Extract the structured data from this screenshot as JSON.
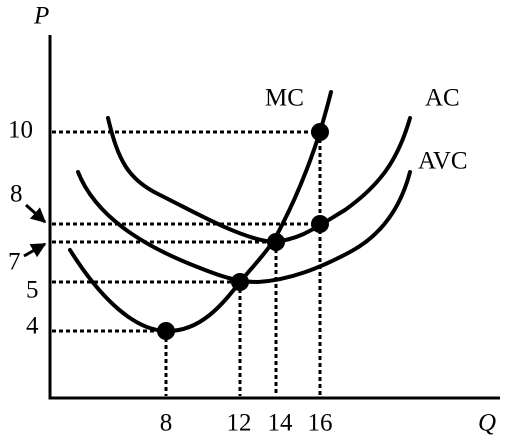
{
  "y_axis": {
    "title": "P",
    "labels": [
      10,
      8,
      7,
      5,
      4
    ]
  },
  "x_axis": {
    "title": "Q",
    "labels": [
      8,
      12,
      14,
      16
    ]
  },
  "curves": [
    {
      "label": "MC"
    },
    {
      "label": "AC"
    },
    {
      "label": "AVC"
    }
  ]
}
